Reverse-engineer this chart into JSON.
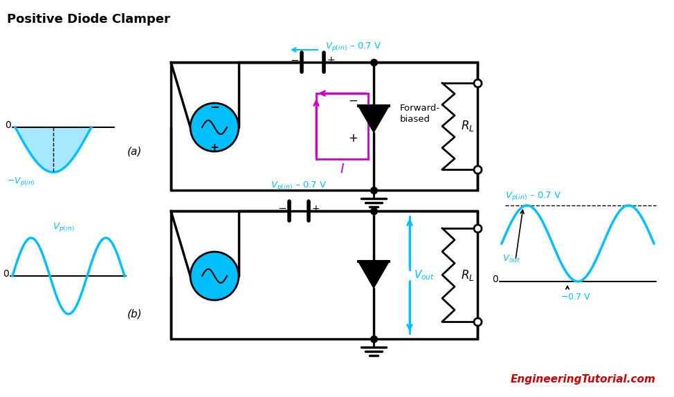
{
  "title": "Positive Diode Clamper",
  "bg_color": "#ffffff",
  "cyan_color": "#00BFFF",
  "magenta_color": "#CC00CC",
  "black": "#000000",
  "red_color": "#CC0000",
  "label_a": "(a)",
  "label_b": "(b)",
  "website": "EngineeringTutorial.com",
  "forward_biased": "Forward-\nbiased",
  "vpin_label": "$V_{p(in)}$",
  "neg_vpin_label": "$-V_{p(in)}$",
  "cap_voltage_a": "$V_{p(in)}$ – 0.7 V",
  "cap_voltage_b": "$V_{p(in)}$ – 0.7 V",
  "vout_label": "$V_{out}$",
  "rl_label": "$R_L$",
  "i_label": "$I$",
  "current_label": "I"
}
